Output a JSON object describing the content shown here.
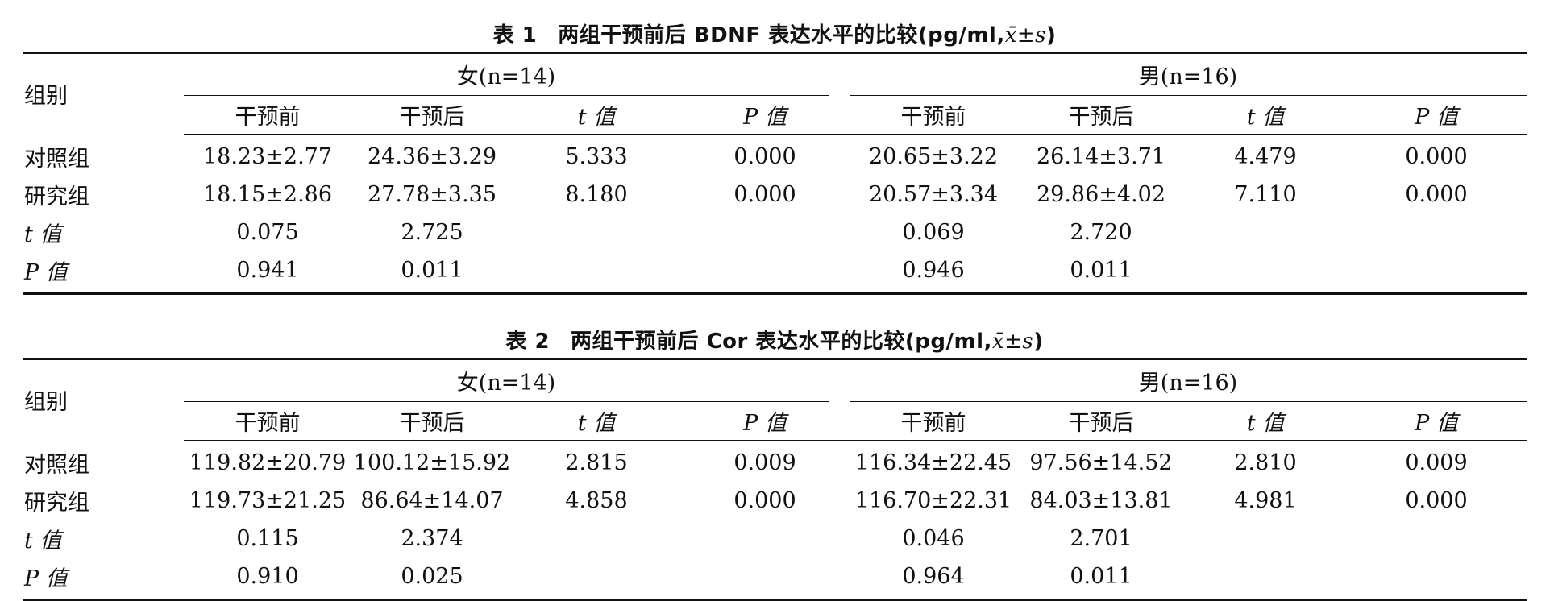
{
  "tables": [
    {
      "number": "表 1",
      "title": "两组干预前后 BDNF 表达水平的比较(pg/ml,",
      "stat": "x̄±s",
      "title_end": ")",
      "group_header": "组别",
      "female_header": "女(n=14)",
      "male_header": "男(n=16)",
      "subheaders": [
        "干预前",
        "干预后",
        "t 值",
        "P 值",
        "干预前",
        "干预后",
        "t 值",
        "P 值"
      ],
      "rows": [
        {
          "label": "对照组",
          "cells": [
            "18.23±2.77",
            "24.36±3.29",
            "5.333",
            "0.000",
            "20.65±3.22",
            "26.14±3.71",
            "4.479",
            "0.000"
          ]
        },
        {
          "label": "研究组",
          "cells": [
            "18.15±2.86",
            "27.78±3.35",
            "8.180",
            "0.000",
            "20.57±3.34",
            "29.86±4.02",
            "7.110",
            "0.000"
          ]
        },
        {
          "label": "t 值",
          "cells": [
            "0.075",
            "2.725",
            "",
            "",
            "0.069",
            "2.720",
            "",
            ""
          ]
        },
        {
          "label": "P 值",
          "cells": [
            "0.941",
            "0.011",
            "",
            "",
            "0.946",
            "0.011",
            "",
            ""
          ]
        }
      ]
    },
    {
      "number": "表 2",
      "title": "两组干预前后 Cor 表达水平的比较(pg/ml,",
      "stat": "x̄±s",
      "title_end": ")",
      "group_header": "组别",
      "female_header": "女(n=14)",
      "male_header": "男(n=16)",
      "subheaders": [
        "干预前",
        "干预后",
        "t 值",
        "P 值",
        "干预前",
        "干预后",
        "t 值",
        "P 值"
      ],
      "rows": [
        {
          "label": "对照组",
          "cells": [
            "119.82±20.79",
            "100.12±15.92",
            "2.815",
            "0.009",
            "116.34±22.45",
            "97.56±14.52",
            "2.810",
            "0.009"
          ]
        },
        {
          "label": "研究组",
          "cells": [
            "119.73±21.25",
            "86.64±14.07",
            "4.858",
            "0.000",
            "116.70±22.31",
            "84.03±13.81",
            "4.981",
            "0.000"
          ]
        },
        {
          "label": "t 值",
          "cells": [
            "0.115",
            "2.374",
            "",
            "",
            "0.046",
            "2.701",
            "",
            ""
          ]
        },
        {
          "label": "P 值",
          "cells": [
            "0.910",
            "0.025",
            "",
            "",
            "0.964",
            "0.011",
            "",
            ""
          ]
        }
      ]
    }
  ]
}
